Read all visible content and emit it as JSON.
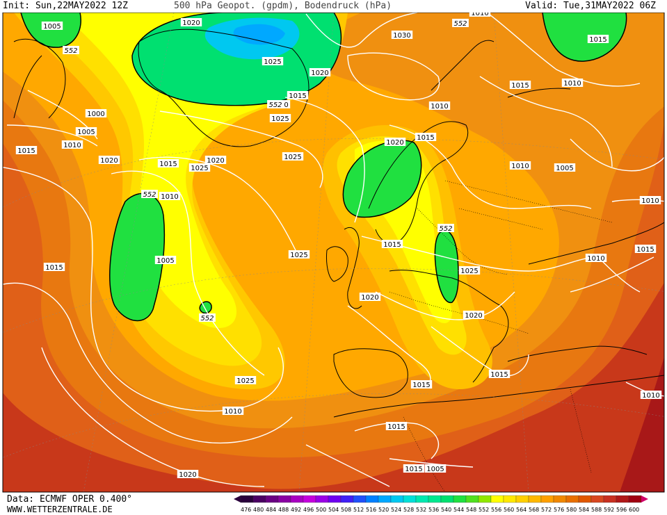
{
  "header": {
    "init": "Init: Sun,22MAY2022 12Z",
    "title": "500 hPa Geopot. (gpdm), Bodendruck (hPa)",
    "valid": "Valid: Tue,31MAY2022 06Z"
  },
  "footer": {
    "source": "Data: ECMWF OPER 0.400°",
    "site": "WWW.WETTERZENTRALE.DE"
  },
  "legend": {
    "values": [
      "476",
      "480",
      "484",
      "488",
      "492",
      "496",
      "500",
      "504",
      "508",
      "512",
      "516",
      "520",
      "524",
      "528",
      "532",
      "536",
      "540",
      "544",
      "548",
      "552",
      "556",
      "560",
      "564",
      "568",
      "572",
      "576",
      "580",
      "584",
      "588",
      "592",
      "596",
      "600"
    ],
    "colors": [
      "#2a003c",
      "#4b0063",
      "#6a0083",
      "#8a00a3",
      "#a800c1",
      "#c400dd",
      "#9a00e6",
      "#6e00f0",
      "#4020f5",
      "#2050fa",
      "#0080ff",
      "#00a8ff",
      "#00c8f0",
      "#00e0d8",
      "#00e8b0",
      "#00e890",
      "#00e070",
      "#20e040",
      "#50e020",
      "#90e800",
      "#ffff00",
      "#ffe800",
      "#ffd000",
      "#ffb800",
      "#ffa000",
      "#f08800",
      "#e87000",
      "#e05800",
      "#d84820",
      "#c83020",
      "#b01818",
      "#a00010"
    ]
  },
  "map": {
    "geopotential_labels": [
      "552",
      "552",
      "552",
      "552",
      "552",
      "552"
    ],
    "pressure_labels": [
      "1005",
      "1020",
      "1030",
      "1025",
      "1020",
      "1010",
      "1000",
      "1005",
      "1010",
      "1015",
      "1020",
      "1015",
      "1020",
      "1025",
      "1010",
      "1005",
      "1015",
      "1025",
      "1025",
      "1030",
      "1025",
      "1015",
      "1020",
      "1020",
      "1015",
      "1015",
      "1025",
      "1015",
      "1015",
      "1020",
      "1015",
      "1010",
      "1010",
      "1005",
      "1010",
      "1015",
      "1010",
      "1015",
      "1010",
      "1010",
      "1015",
      "1015",
      "1005",
      "1020",
      "1025",
      "1010"
    ]
  }
}
